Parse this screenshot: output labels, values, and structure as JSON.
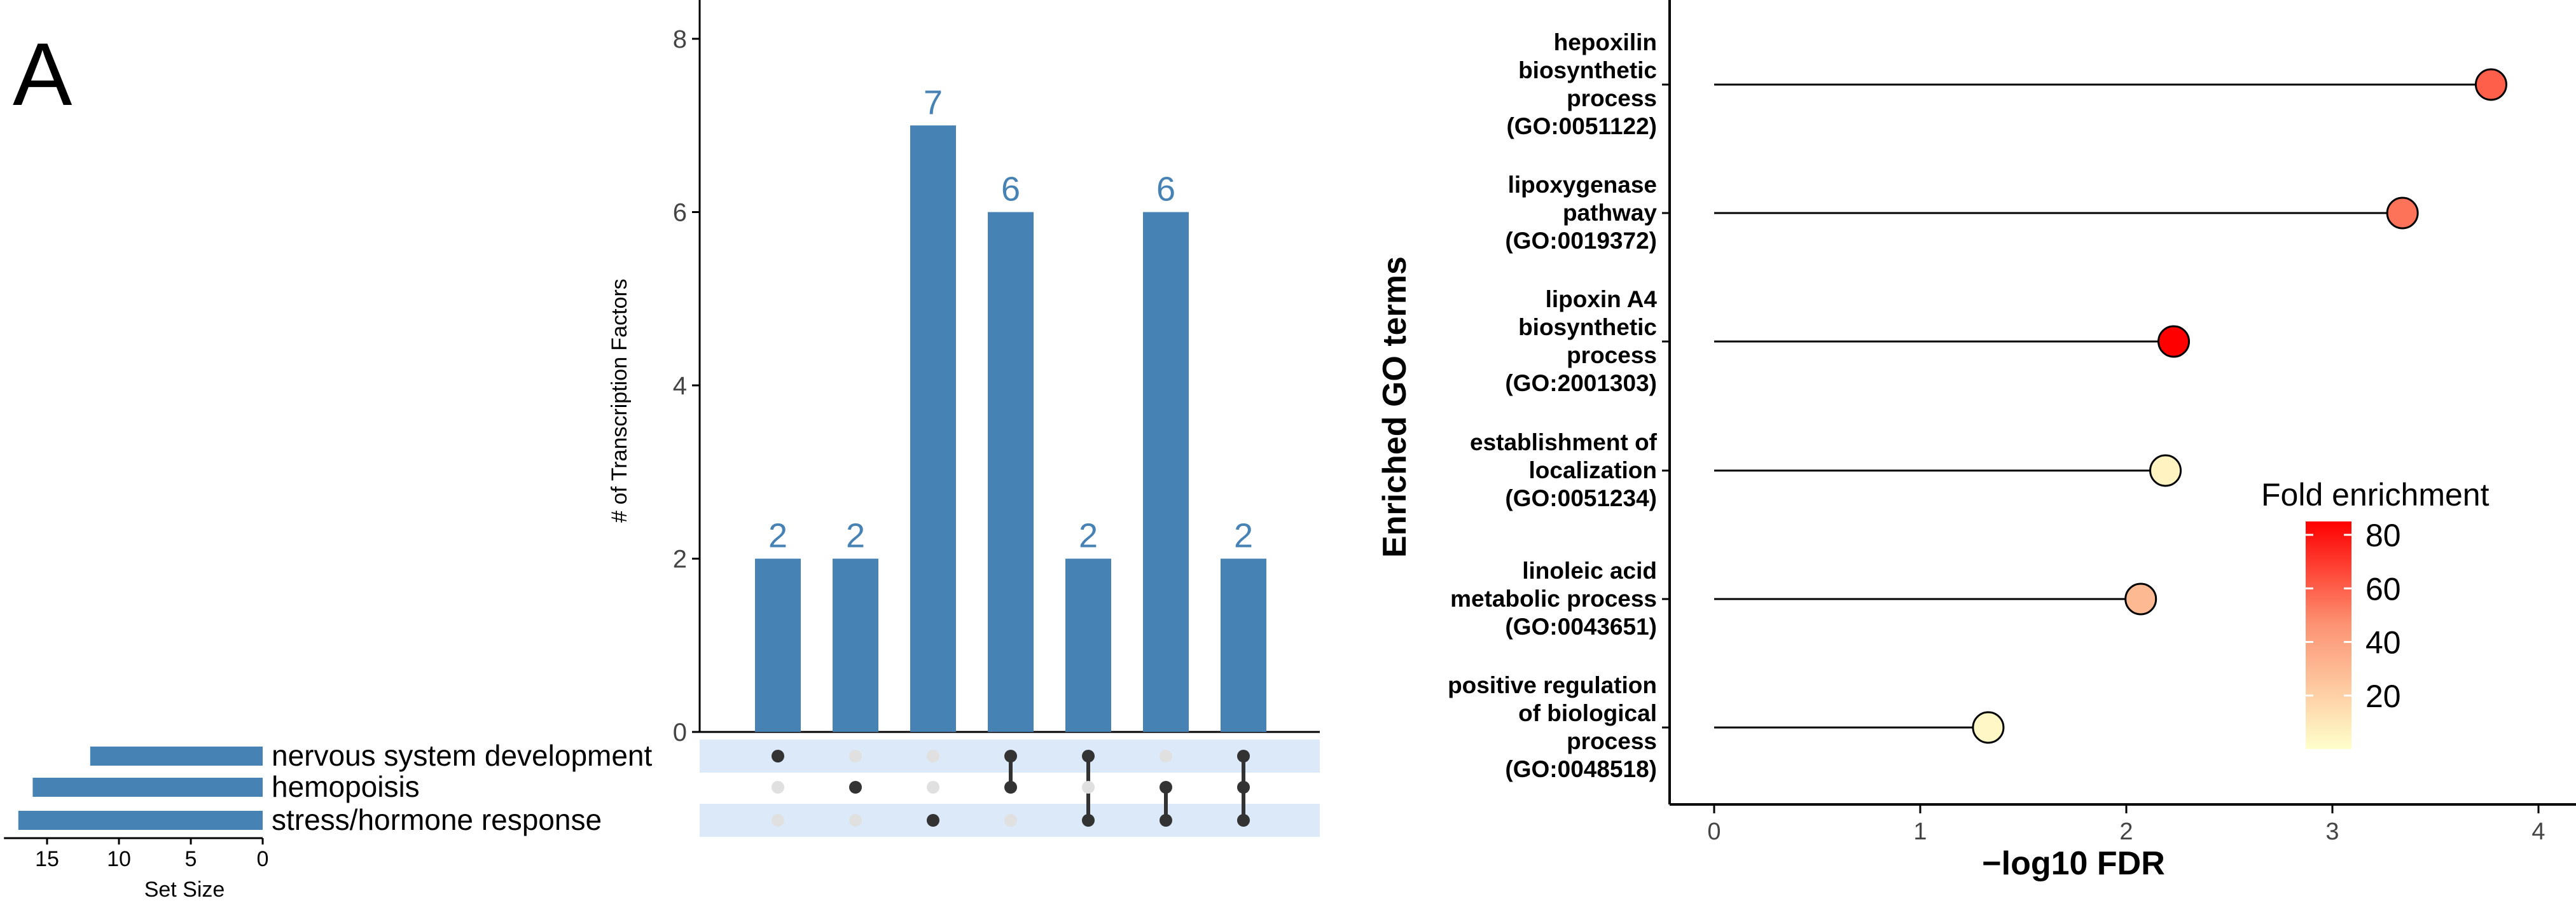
{
  "panel_label": "A",
  "colors": {
    "bar": "#4682b4",
    "axis": "#000000",
    "dot_active": "#333333",
    "dot_inactive": "#e0e0e0",
    "matrix_band": "#dbe9f8",
    "lollipop_low": "#ffffcc",
    "lollipop_mid": "#fc9272",
    "lollipop_high": "#ff0000"
  },
  "chart_data": [
    {
      "type": "bar",
      "subtype": "upset-intersections",
      "ylabel": "# of Transcription Factors",
      "ylim": [
        0,
        8
      ],
      "yticks": [
        0,
        2,
        4,
        6,
        8
      ],
      "values": [
        2,
        2,
        7,
        6,
        2,
        6,
        2
      ],
      "value_labels": [
        "2",
        "2",
        "7",
        "6",
        "2",
        "6",
        "2"
      ],
      "matrix": {
        "sets": [
          "nervous system development",
          "hemopoisis",
          "stress/hormone response"
        ],
        "membership": [
          [
            0
          ],
          [
            1
          ],
          [
            2
          ],
          [
            0,
            1
          ],
          [
            0,
            2
          ],
          [
            1,
            2
          ],
          [
            0,
            1,
            2
          ]
        ]
      }
    },
    {
      "type": "bar",
      "subtype": "upset-set-size",
      "orientation": "horizontal",
      "xlabel": "Set Size",
      "xticks": [
        15,
        10,
        5,
        0
      ],
      "xlim": [
        0,
        18
      ],
      "categories": [
        "nervous system development",
        "hemopoisis",
        "stress/hormone response"
      ],
      "values": [
        12,
        16,
        17
      ]
    },
    {
      "type": "scatter",
      "subtype": "lollipop",
      "xlabel": "−log10 FDR",
      "ylabel": "Enriched GO terms",
      "xlim": [
        -0.2,
        4.2
      ],
      "xticks": [
        0,
        1,
        2,
        3,
        4
      ],
      "categories": [
        [
          "hepoxilin",
          "biosynthetic",
          "process",
          "(GO:0051122)"
        ],
        [
          "lipoxygenase",
          "pathway",
          "(GO:0019372)"
        ],
        [
          "lipoxin A4",
          "biosynthetic",
          "process",
          "(GO:2001303)"
        ],
        [
          "establishment of",
          "localization",
          "(GO:0051234)"
        ],
        [
          "linoleic acid",
          "metabolic process",
          "(GO:0043651)"
        ],
        [
          "positive regulation",
          "of biological",
          "process",
          "(GO:0048518)"
        ]
      ],
      "x": [
        3.77,
        3.34,
        2.23,
        2.19,
        2.07,
        1.33
      ],
      "fold_enrichment": [
        60,
        55,
        85,
        5,
        30,
        3
      ],
      "legend": {
        "title": "Fold enrichment",
        "ticks": [
          80,
          60,
          40,
          20
        ],
        "range": [
          0,
          85
        ]
      }
    }
  ]
}
